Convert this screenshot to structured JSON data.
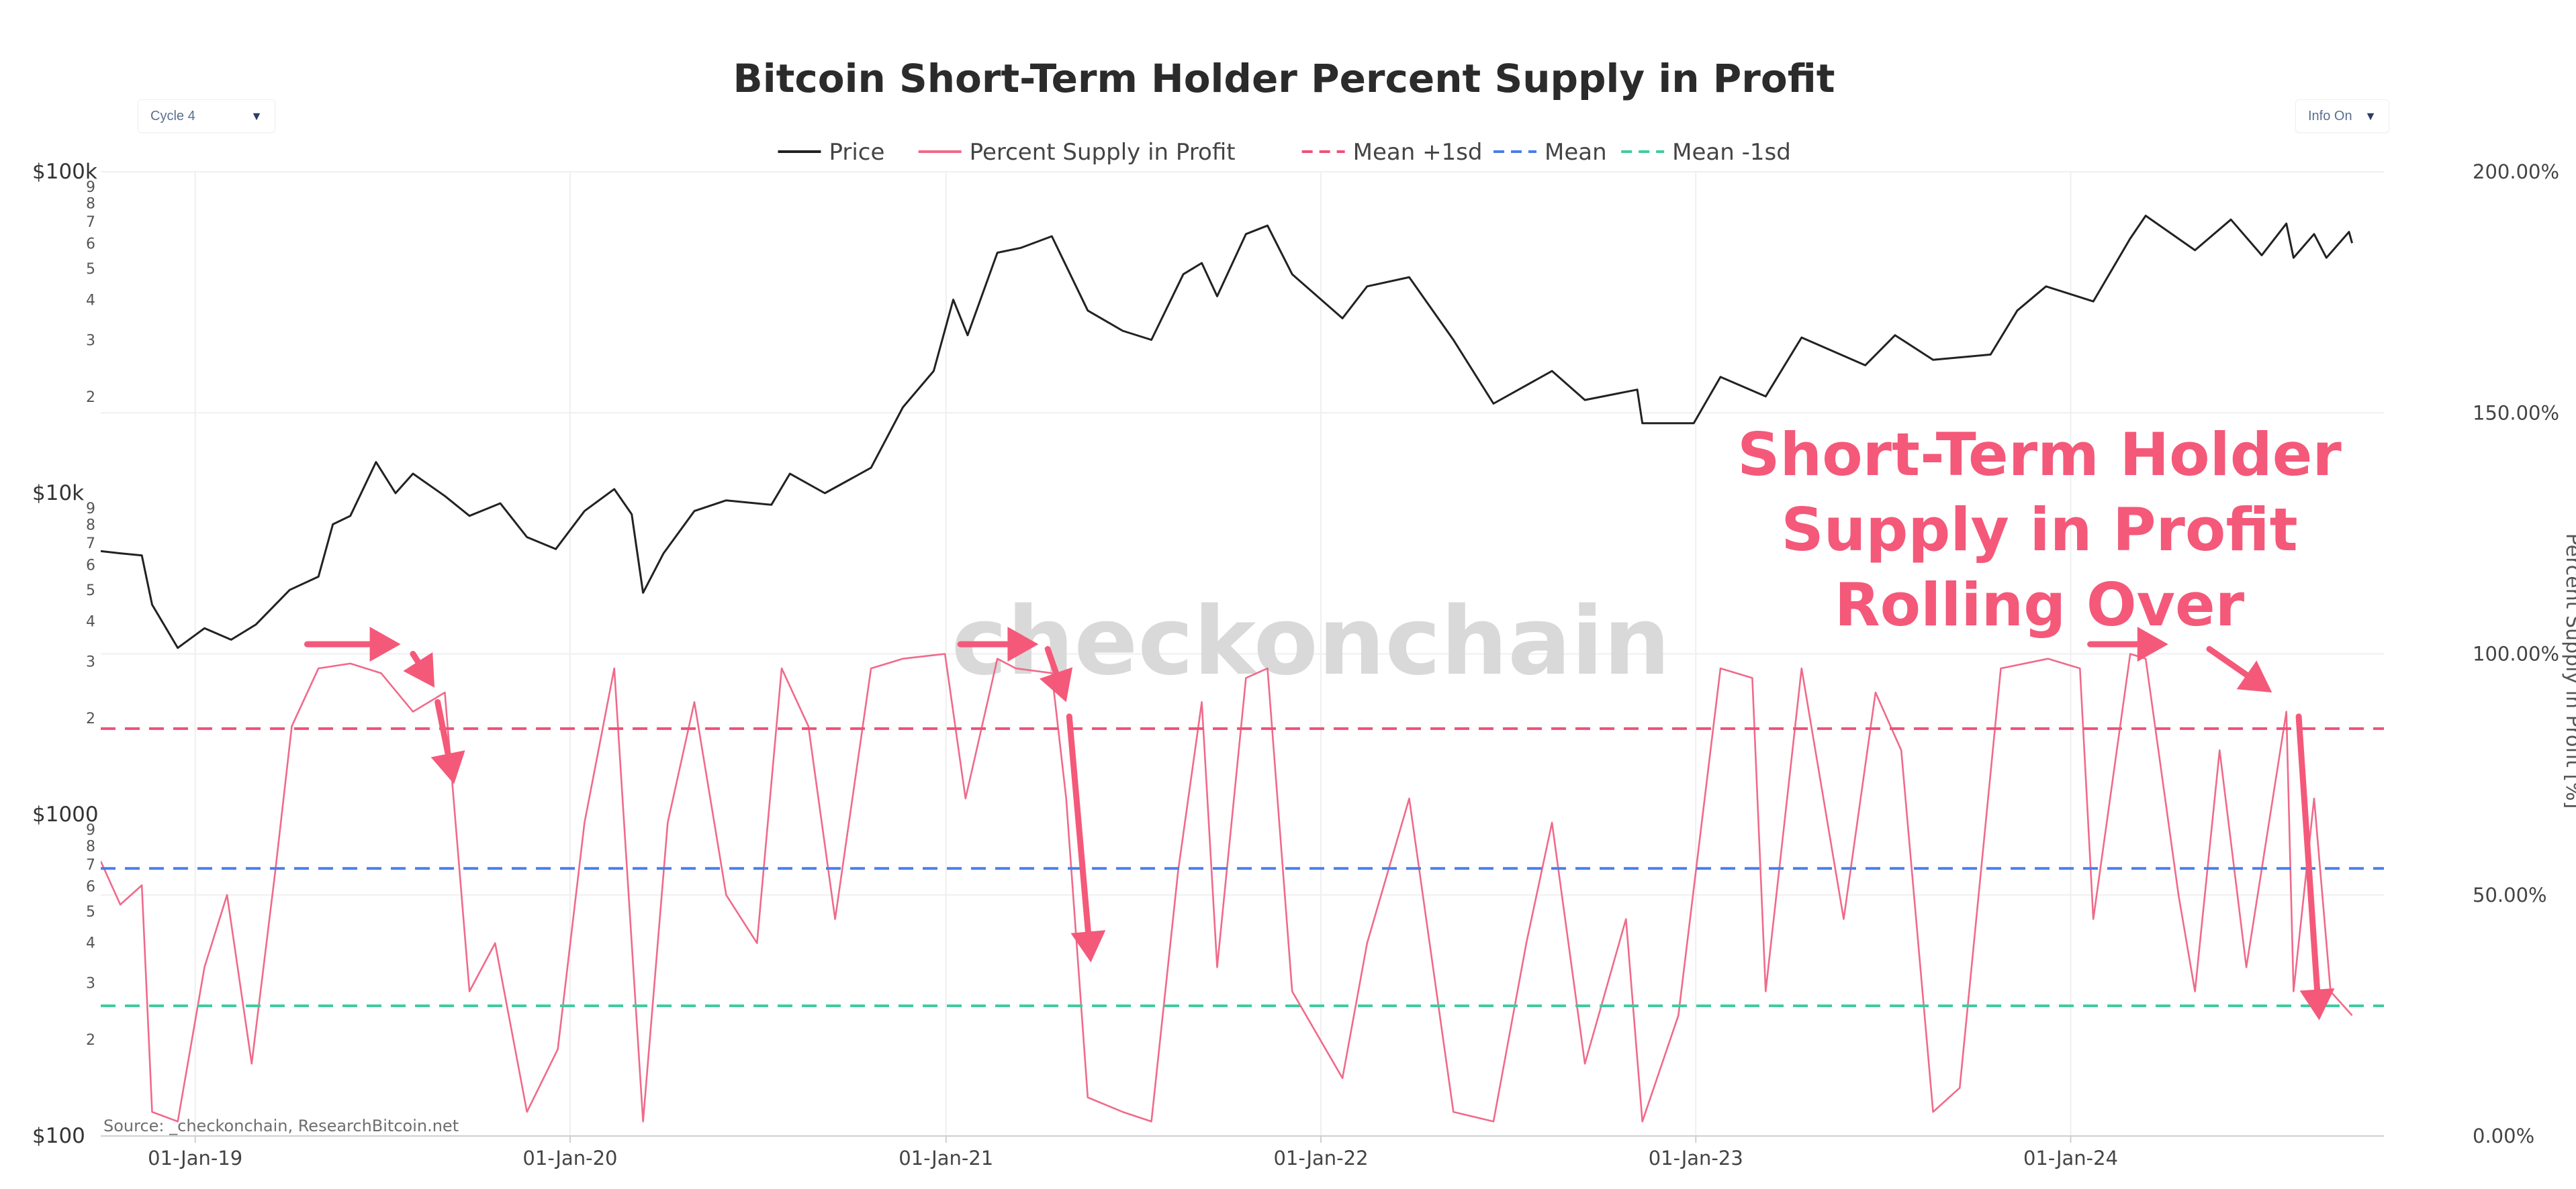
{
  "controls": {
    "cycle_select": {
      "value": "Cycle 4"
    },
    "info_select": {
      "value": "Info On"
    }
  },
  "watermark": "checkonchain",
  "source": "Source: _checkonchain, ResearchBitcoin.net",
  "annotation": {
    "lines": [
      "Short-Term Holder",
      "Supply in Profit",
      "Rolling Over"
    ],
    "color": "#f4597a"
  },
  "chart_data": {
    "type": "line",
    "title": "Bitcoin Short-Term Holder Percent Supply in Profit",
    "xlabel": "",
    "ylabel_left": "",
    "ylabel_right": "Percent Supply in Profit [%]",
    "x_range": [
      "2018-10-01",
      "2024-11-01"
    ],
    "x_tick_labels": [
      "01-Jan-19",
      "01-Jan-20",
      "01-Jan-21",
      "01-Jan-22",
      "01-Jan-23",
      "01-Jan-24"
    ],
    "y_left": {
      "scale": "log",
      "range": [
        100,
        100000
      ],
      "major_ticks": [
        {
          "value": 100,
          "label": "$100"
        },
        {
          "value": 1000,
          "label": "$1000"
        },
        {
          "value": 10000,
          "label": "$10k"
        },
        {
          "value": 100000,
          "label": "$100k"
        }
      ],
      "minor_ticks": [
        "2",
        "3",
        "4",
        "5",
        "6",
        "7",
        "8",
        "9"
      ]
    },
    "y_right": {
      "range": [
        0,
        200
      ],
      "ticks": [
        {
          "value": 0,
          "label": "0.00%"
        },
        {
          "value": 50,
          "label": "50.00%"
        },
        {
          "value": 100,
          "label": "100.00%"
        },
        {
          "value": 150,
          "label": "150.00%"
        },
        {
          "value": 200,
          "label": "200.00%"
        }
      ]
    },
    "legend": [
      {
        "name": "Price",
        "color": "#222222",
        "dash": "solid"
      },
      {
        "name": "Percent Supply in Profit",
        "color": "#f06a8a",
        "dash": "solid"
      },
      {
        "name": "Mean +1sd",
        "color": "#f0507a",
        "dash": "dashed"
      },
      {
        "name": "Mean",
        "color": "#4a7ee8",
        "dash": "dashed"
      },
      {
        "name": "Mean -1sd",
        "color": "#3ecca0",
        "dash": "dashed"
      }
    ],
    "series": [
      {
        "name": "Price",
        "axis": "left",
        "points": [
          [
            "2018-10-01",
            6600
          ],
          [
            "2018-10-20",
            6500
          ],
          [
            "2018-11-10",
            6400
          ],
          [
            "2018-11-20",
            4500
          ],
          [
            "2018-12-15",
            3300
          ],
          [
            "2019-01-10",
            3800
          ],
          [
            "2019-02-05",
            3500
          ],
          [
            "2019-03-01",
            3900
          ],
          [
            "2019-04-03",
            5000
          ],
          [
            "2019-05-01",
            5500
          ],
          [
            "2019-05-15",
            8000
          ],
          [
            "2019-06-01",
            8500
          ],
          [
            "2019-06-26",
            12500
          ],
          [
            "2019-07-15",
            10000
          ],
          [
            "2019-08-01",
            11500
          ],
          [
            "2019-09-01",
            9800
          ],
          [
            "2019-09-25",
            8500
          ],
          [
            "2019-10-25",
            9300
          ],
          [
            "2019-11-20",
            7300
          ],
          [
            "2019-12-18",
            6700
          ],
          [
            "2020-01-15",
            8800
          ],
          [
            "2020-02-13",
            10300
          ],
          [
            "2020-03-01",
            8600
          ],
          [
            "2020-03-12",
            4900
          ],
          [
            "2020-04-01",
            6500
          ],
          [
            "2020-05-01",
            8800
          ],
          [
            "2020-06-01",
            9500
          ],
          [
            "2020-07-15",
            9200
          ],
          [
            "2020-08-02",
            11500
          ],
          [
            "2020-09-05",
            10000
          ],
          [
            "2020-10-20",
            12000
          ],
          [
            "2020-11-20",
            18500
          ],
          [
            "2020-12-20",
            24000
          ],
          [
            "2021-01-08",
            40000
          ],
          [
            "2021-01-22",
            31000
          ],
          [
            "2021-02-20",
            56000
          ],
          [
            "2021-03-15",
            58000
          ],
          [
            "2021-04-14",
            63000
          ],
          [
            "2021-05-19",
            37000
          ],
          [
            "2021-06-22",
            32000
          ],
          [
            "2021-07-20",
            30000
          ],
          [
            "2021-08-20",
            48000
          ],
          [
            "2021-09-07",
            52000
          ],
          [
            "2021-09-22",
            41000
          ],
          [
            "2021-10-20",
            64000
          ],
          [
            "2021-11-10",
            68000
          ],
          [
            "2021-12-04",
            48000
          ],
          [
            "2022-01-22",
            35000
          ],
          [
            "2022-02-15",
            44000
          ],
          [
            "2022-03-28",
            47000
          ],
          [
            "2022-05-10",
            30000
          ],
          [
            "2022-06-18",
            19000
          ],
          [
            "2022-08-14",
            24000
          ],
          [
            "2022-09-15",
            19500
          ],
          [
            "2022-11-05",
            21000
          ],
          [
            "2022-11-10",
            16500
          ],
          [
            "2022-12-30",
            16500
          ],
          [
            "2023-01-25",
            23000
          ],
          [
            "2023-03-10",
            20000
          ],
          [
            "2023-04-14",
            30500
          ],
          [
            "2023-06-15",
            25000
          ],
          [
            "2023-07-14",
            31000
          ],
          [
            "2023-08-20",
            26000
          ],
          [
            "2023-10-15",
            27000
          ],
          [
            "2023-11-10",
            37000
          ],
          [
            "2023-12-08",
            44000
          ],
          [
            "2024-01-23",
            39500
          ],
          [
            "2024-02-28",
            62000
          ],
          [
            "2024-03-14",
            73000
          ],
          [
            "2024-05-01",
            57000
          ],
          [
            "2024-06-05",
            71000
          ],
          [
            "2024-07-05",
            55000
          ],
          [
            "2024-07-29",
            69000
          ],
          [
            "2024-08-05",
            54000
          ],
          [
            "2024-08-25",
            64000
          ],
          [
            "2024-09-06",
            54000
          ],
          [
            "2024-09-28",
            65000
          ],
          [
            "2024-10-01",
            60000
          ]
        ]
      },
      {
        "name": "Percent Supply in Profit",
        "axis": "right",
        "points": [
          [
            "2018-10-01",
            57
          ],
          [
            "2018-10-20",
            48
          ],
          [
            "2018-11-10",
            52
          ],
          [
            "2018-11-20",
            5
          ],
          [
            "2018-12-15",
            3
          ],
          [
            "2019-01-10",
            35
          ],
          [
            "2019-02-01",
            50
          ],
          [
            "2019-02-25",
            15
          ],
          [
            "2019-03-20",
            55
          ],
          [
            "2019-04-05",
            85
          ],
          [
            "2019-05-01",
            97
          ],
          [
            "2019-06-01",
            98
          ],
          [
            "2019-07-01",
            96
          ],
          [
            "2019-08-01",
            88
          ],
          [
            "2019-09-01",
            92
          ],
          [
            "2019-09-25",
            30
          ],
          [
            "2019-10-20",
            40
          ],
          [
            "2019-11-20",
            5
          ],
          [
            "2019-12-20",
            18
          ],
          [
            "2020-01-15",
            65
          ],
          [
            "2020-02-13",
            97
          ],
          [
            "2020-03-01",
            40
          ],
          [
            "2020-03-12",
            3
          ],
          [
            "2020-04-05",
            65
          ],
          [
            "2020-05-01",
            90
          ],
          [
            "2020-06-01",
            50
          ],
          [
            "2020-07-01",
            40
          ],
          [
            "2020-07-25",
            97
          ],
          [
            "2020-08-20",
            85
          ],
          [
            "2020-09-15",
            45
          ],
          [
            "2020-10-20",
            97
          ],
          [
            "2020-11-20",
            99
          ],
          [
            "2020-12-31",
            100
          ],
          [
            "2021-01-20",
            70
          ],
          [
            "2021-02-20",
            99
          ],
          [
            "2021-03-10",
            97
          ],
          [
            "2021-04-14",
            96
          ],
          [
            "2021-04-28",
            70
          ],
          [
            "2021-05-19",
            8
          ],
          [
            "2021-06-22",
            5
          ],
          [
            "2021-07-20",
            3
          ],
          [
            "2021-08-15",
            55
          ],
          [
            "2021-09-07",
            90
          ],
          [
            "2021-09-22",
            35
          ],
          [
            "2021-10-20",
            95
          ],
          [
            "2021-11-10",
            97
          ],
          [
            "2021-12-04",
            30
          ],
          [
            "2022-01-22",
            12
          ],
          [
            "2022-02-15",
            40
          ],
          [
            "2022-03-28",
            70
          ],
          [
            "2022-05-10",
            5
          ],
          [
            "2022-06-18",
            3
          ],
          [
            "2022-07-20",
            40
          ],
          [
            "2022-08-14",
            65
          ],
          [
            "2022-09-15",
            15
          ],
          [
            "2022-10-25",
            45
          ],
          [
            "2022-11-10",
            3
          ],
          [
            "2022-12-15",
            25
          ],
          [
            "2023-01-25",
            97
          ],
          [
            "2023-02-25",
            95
          ],
          [
            "2023-03-10",
            30
          ],
          [
            "2023-04-14",
            97
          ],
          [
            "2023-05-25",
            45
          ],
          [
            "2023-06-25",
            92
          ],
          [
            "2023-07-20",
            80
          ],
          [
            "2023-08-20",
            5
          ],
          [
            "2023-09-15",
            10
          ],
          [
            "2023-10-25",
            97
          ],
          [
            "2023-12-10",
            99
          ],
          [
            "2024-01-10",
            97
          ],
          [
            "2024-01-23",
            45
          ],
          [
            "2024-02-28",
            100
          ],
          [
            "2024-03-14",
            99
          ],
          [
            "2024-04-15",
            50
          ],
          [
            "2024-05-01",
            30
          ],
          [
            "2024-05-25",
            80
          ],
          [
            "2024-06-20",
            35
          ],
          [
            "2024-07-29",
            88
          ],
          [
            "2024-08-05",
            30
          ],
          [
            "2024-08-25",
            70
          ],
          [
            "2024-09-10",
            30
          ],
          [
            "2024-10-01",
            25
          ]
        ]
      },
      {
        "name": "Mean +1sd",
        "axis": "right",
        "constant": 84.5
      },
      {
        "name": "Mean",
        "axis": "right",
        "constant": 55.5
      },
      {
        "name": "Mean -1sd",
        "axis": "right",
        "constant": 27
      }
    ],
    "annotation_arrows": [
      {
        "type": "horizontal",
        "from": [
          "2019-04-20",
          102
        ],
        "to": [
          "2019-07-20",
          102
        ]
      },
      {
        "type": "down",
        "from": [
          "2019-08-01",
          100
        ],
        "to": [
          "2019-08-22",
          93
        ]
      },
      {
        "type": "down",
        "from": [
          "2019-08-25",
          90
        ],
        "to": [
          "2019-09-10",
          73
        ]
      },
      {
        "type": "horizontal",
        "from": [
          "2021-01-15",
          102
        ],
        "to": [
          "2021-04-01",
          102
        ]
      },
      {
        "type": "down",
        "from": [
          "2021-04-10",
          101
        ],
        "to": [
          "2021-04-28",
          90
        ]
      },
      {
        "type": "down",
        "from": [
          "2021-05-01",
          87
        ],
        "to": [
          "2021-05-22",
          36
        ]
      },
      {
        "type": "horizontal",
        "from": [
          "2024-01-20",
          102
        ],
        "to": [
          "2024-04-05",
          102
        ]
      },
      {
        "type": "down",
        "from": [
          "2024-05-15",
          101
        ],
        "to": [
          "2024-07-15",
          92
        ]
      },
      {
        "type": "down",
        "from": [
          "2024-08-10",
          87
        ],
        "to": [
          "2024-08-30",
          24
        ]
      }
    ]
  }
}
